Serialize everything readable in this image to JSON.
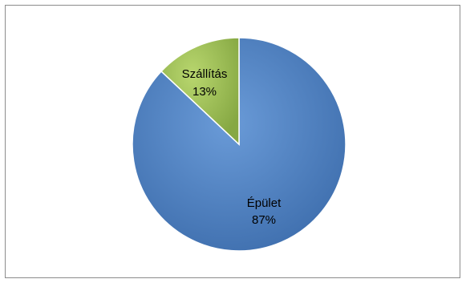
{
  "chart_data": {
    "type": "pie",
    "title": "",
    "slices": [
      {
        "label": "Épület",
        "percent_label": "87%",
        "value": 87,
        "color": "#4f81bd"
      },
      {
        "label": "Szállítás",
        "percent_label": "13%",
        "value": 13,
        "color": "#9bbb59"
      }
    ],
    "legend": "none",
    "start_angle": "top",
    "direction": "counterclockwise-for-second-slice"
  }
}
